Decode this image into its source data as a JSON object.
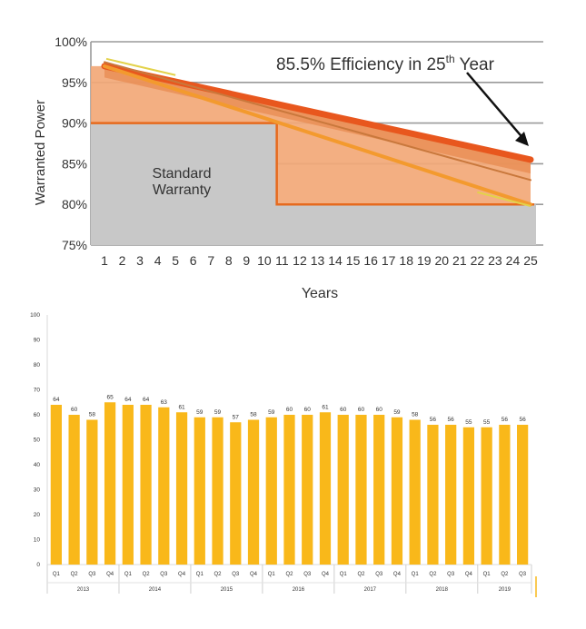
{
  "chart_data": [
    {
      "type": "area",
      "ylabel": "Warranted Power",
      "xlabel": "Years",
      "x": [
        1,
        2,
        3,
        4,
        5,
        6,
        7,
        8,
        9,
        10,
        11,
        12,
        13,
        14,
        15,
        16,
        17,
        18,
        19,
        20,
        21,
        22,
        23,
        24,
        25
      ],
      "x_ticks": [
        "1",
        "2",
        "3",
        "4",
        "5",
        "6",
        "7",
        "8",
        "9",
        "10",
        "11",
        "12",
        "13",
        "14",
        "15",
        "16",
        "17",
        "18",
        "19",
        "20",
        "21",
        "22",
        "23",
        "24",
        "25"
      ],
      "y_ticks": [
        "100%",
        "95%",
        "90%",
        "85%",
        "80%",
        "75%"
      ],
      "ylim": [
        75,
        100
      ],
      "series": [
        {
          "x": [
            1,
            25
          ],
          "values": [
            97.0,
            85.5
          ],
          "color": "#e8571e"
        },
        {
          "x": [
            1,
            25
          ],
          "values": [
            97.0,
            80.0
          ],
          "color": "#f39a2e"
        },
        {
          "x": [
            1,
            25
          ],
          "values": [
            97.5,
            83.0
          ],
          "color": "#c9783c"
        }
      ],
      "standard_warranty": {
        "label_line1": "Standard",
        "label_line2": "Warranty",
        "steps": [
          {
            "x": [
              1,
              10.5
            ],
            "value": 90
          },
          {
            "x": [
              10.5,
              25
            ],
            "value": 80
          }
        ]
      },
      "annotation": {
        "prefix": "85.5% Efficiency in 25",
        "sup": "th",
        "suffix": " Year",
        "target_x": 25,
        "target_y": 86.5
      },
      "grid": true
    },
    {
      "type": "bar",
      "color": "#f9b81a",
      "ylim": [
        0,
        100
      ],
      "y_ticks": [
        "0",
        "10",
        "20",
        "30",
        "40",
        "50",
        "60",
        "70",
        "80",
        "90",
        "100"
      ],
      "categories": [
        "Q1",
        "Q2",
        "Q3",
        "Q4",
        "Q1",
        "Q2",
        "Q3",
        "Q4",
        "Q1",
        "Q2",
        "Q3",
        "Q4",
        "Q1",
        "Q2",
        "Q3",
        "Q4",
        "Q1",
        "Q2",
        "Q3",
        "Q4",
        "Q1",
        "Q2",
        "Q3",
        "Q4",
        "Q1",
        "Q2",
        "Q3"
      ],
      "values": [
        64,
        60,
        58,
        65,
        64,
        64,
        63,
        61,
        59,
        59,
        57,
        58,
        59,
        60,
        60,
        61,
        60,
        60,
        60,
        59,
        58,
        56,
        56,
        55,
        55,
        56,
        56
      ],
      "groups": [
        {
          "label": "2013",
          "count": 4
        },
        {
          "label": "2014",
          "count": 4
        },
        {
          "label": "2015",
          "count": 4
        },
        {
          "label": "2016",
          "count": 4
        },
        {
          "label": "2017",
          "count": 4
        },
        {
          "label": "2018",
          "count": 4
        },
        {
          "label": "2019",
          "count": 3
        }
      ]
    }
  ]
}
